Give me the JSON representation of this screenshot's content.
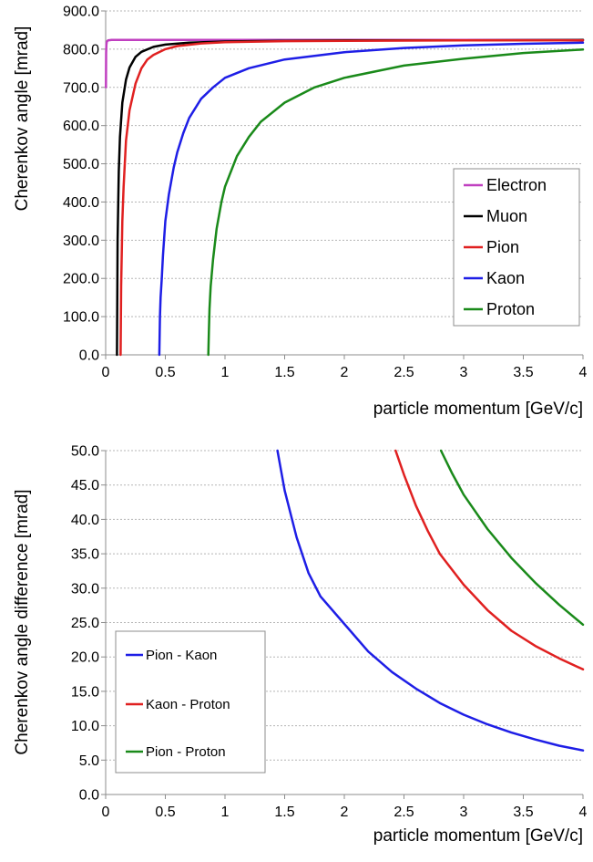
{
  "chart_data": [
    {
      "type": "line",
      "title": "",
      "xlabel": "particle momentum [GeV/c]",
      "ylabel": "Cherenkov angle [mrad]",
      "xlim": [
        0,
        4
      ],
      "ylim": [
        0,
        900
      ],
      "x_ticks": [
        "0",
        "0.5",
        "1",
        "1.5",
        "2",
        "2.5",
        "3",
        "3.5",
        "4"
      ],
      "y_ticks": [
        "0.0",
        "100.0",
        "200.0",
        "300.0",
        "400.0",
        "500.0",
        "600.0",
        "700.0",
        "800.0",
        "900.0"
      ],
      "grid": true,
      "legend_position": "right",
      "series": [
        {
          "name": "Electron",
          "color": "#c040c0",
          "points": [
            [
              0.002,
              700
            ],
            [
              0.004,
              790
            ],
            [
              0.006,
              812
            ],
            [
              0.01,
              820
            ],
            [
              0.02,
              823
            ],
            [
              0.05,
              824
            ],
            [
              4,
              824
            ]
          ]
        },
        {
          "name": "Muon",
          "color": "#000000",
          "points": [
            [
              0.095,
              0
            ],
            [
              0.1,
              300
            ],
            [
              0.11,
              480
            ],
            [
              0.12,
              570
            ],
            [
              0.14,
              660
            ],
            [
              0.17,
              720
            ],
            [
              0.2,
              752
            ],
            [
              0.25,
              780
            ],
            [
              0.3,
              793
            ],
            [
              0.4,
              806
            ],
            [
              0.5,
              812
            ],
            [
              0.7,
              817
            ],
            [
              1,
              820
            ],
            [
              1.5,
              822
            ],
            [
              2,
              823
            ],
            [
              3,
              823
            ],
            [
              4,
              824
            ]
          ]
        },
        {
          "name": "Pion",
          "color": "#e02020",
          "points": [
            [
              0.125,
              0
            ],
            [
              0.13,
              180
            ],
            [
              0.14,
              350
            ],
            [
              0.15,
              440
            ],
            [
              0.17,
              560
            ],
            [
              0.2,
              640
            ],
            [
              0.25,
              710
            ],
            [
              0.3,
              750
            ],
            [
              0.35,
              773
            ],
            [
              0.4,
              785
            ],
            [
              0.5,
              800
            ],
            [
              0.6,
              808
            ],
            [
              0.8,
              815
            ],
            [
              1,
              818
            ],
            [
              1.5,
              821
            ],
            [
              2,
              822
            ],
            [
              3,
              823
            ],
            [
              4,
              823
            ]
          ]
        },
        {
          "name": "Kaon",
          "color": "#1e1ee6",
          "points": [
            [
              0.45,
              0
            ],
            [
              0.455,
              100
            ],
            [
              0.46,
              150
            ],
            [
              0.47,
              200
            ],
            [
              0.48,
              260
            ],
            [
              0.5,
              350
            ],
            [
              0.53,
              420
            ],
            [
              0.57,
              490
            ],
            [
              0.6,
              530
            ],
            [
              0.65,
              580
            ],
            [
              0.7,
              620
            ],
            [
              0.8,
              670
            ],
            [
              0.9,
              700
            ],
            [
              1,
              725
            ],
            [
              1.2,
              750
            ],
            [
              1.5,
              773
            ],
            [
              2,
              792
            ],
            [
              2.5,
              803
            ],
            [
              3,
              810
            ],
            [
              3.5,
              814
            ],
            [
              4,
              817
            ]
          ]
        },
        {
          "name": "Proton",
          "color": "#1a8a1a",
          "points": [
            [
              0.86,
              0
            ],
            [
              0.865,
              60
            ],
            [
              0.87,
              120
            ],
            [
              0.88,
              180
            ],
            [
              0.9,
              250
            ],
            [
              0.93,
              330
            ],
            [
              0.97,
              400
            ],
            [
              1,
              440
            ],
            [
              1.1,
              520
            ],
            [
              1.2,
              570
            ],
            [
              1.3,
              610
            ],
            [
              1.5,
              660
            ],
            [
              1.75,
              700
            ],
            [
              2,
              725
            ],
            [
              2.5,
              757
            ],
            [
              3,
              775
            ],
            [
              3.5,
              790
            ],
            [
              4,
              799
            ]
          ]
        }
      ]
    },
    {
      "type": "line",
      "title": "",
      "xlabel": "particle momentum [GeV/c]",
      "ylabel": "Cherenkov angle difference [mrad]",
      "xlim": [
        0,
        4
      ],
      "ylim": [
        0,
        50
      ],
      "x_ticks": [
        "0",
        "0.5",
        "1",
        "1.5",
        "2",
        "2.5",
        "3",
        "3.5",
        "4"
      ],
      "y_ticks": [
        "0.0",
        "5.0",
        "10.0",
        "15.0",
        "20.0",
        "25.0",
        "30.0",
        "35.0",
        "40.0",
        "45.0",
        "50.0"
      ],
      "grid": true,
      "legend_position": "bottom-left",
      "series": [
        {
          "name": "Pion - Kaon",
          "color": "#1e1ee6",
          "points": [
            [
              1.44,
              50
            ],
            [
              1.5,
              44.2
            ],
            [
              1.6,
              37.4
            ],
            [
              1.7,
              32.2
            ],
            [
              1.8,
              28.8
            ],
            [
              2,
              24.8
            ],
            [
              2.2,
              20.8
            ],
            [
              2.4,
              17.8
            ],
            [
              2.6,
              15.4
            ],
            [
              2.8,
              13.3
            ],
            [
              3,
              11.6
            ],
            [
              3.2,
              10.2
            ],
            [
              3.4,
              9.0
            ],
            [
              3.6,
              8.0
            ],
            [
              3.8,
              7.1
            ],
            [
              4,
              6.4
            ]
          ]
        },
        {
          "name": "Kaon - Proton",
          "color": "#e02020",
          "points": [
            [
              2.43,
              50
            ],
            [
              2.5,
              46.5
            ],
            [
              2.6,
              42.0
            ],
            [
              2.7,
              38.3
            ],
            [
              2.8,
              35.0
            ],
            [
              3,
              30.5
            ],
            [
              3.2,
              26.8
            ],
            [
              3.4,
              23.8
            ],
            [
              3.6,
              21.6
            ],
            [
              3.8,
              19.8
            ],
            [
              4,
              18.2
            ]
          ]
        },
        {
          "name": "Pion - Proton",
          "color": "#1a8a1a",
          "points": [
            [
              2.81,
              50
            ],
            [
              2.9,
              46.8
            ],
            [
              3,
              43.6
            ],
            [
              3.2,
              38.6
            ],
            [
              3.4,
              34.4
            ],
            [
              3.6,
              30.8
            ],
            [
              3.8,
              27.6
            ],
            [
              4,
              24.7
            ]
          ]
        }
      ]
    }
  ]
}
